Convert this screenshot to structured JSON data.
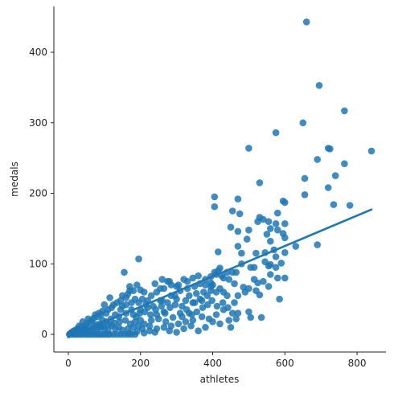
{
  "chart_data": {
    "type": "scatter",
    "title": "",
    "xlabel": "athletes",
    "ylabel": "medals",
    "xlim": [
      -40,
      880
    ],
    "ylim": [
      -25,
      465
    ],
    "xticks": [
      0,
      200,
      400,
      600,
      800
    ],
    "yticks": [
      0,
      100,
      200,
      300,
      400
    ],
    "grid": false,
    "legend": "none",
    "colors": {
      "points": "#1f77b4",
      "line": "#1f77b4",
      "axis": "#222222"
    },
    "regression_line": {
      "x": [
        0,
        840
      ],
      "y": [
        -4,
        177
      ]
    },
    "points": [
      [
        660,
        443
      ],
      [
        695,
        353
      ],
      [
        765,
        317
      ],
      [
        650,
        300
      ],
      [
        575,
        286
      ],
      [
        500,
        264
      ],
      [
        720,
        264
      ],
      [
        725,
        263
      ],
      [
        840,
        260
      ],
      [
        690,
        248
      ],
      [
        765,
        242
      ],
      [
        740,
        225
      ],
      [
        655,
        221
      ],
      [
        530,
        215
      ],
      [
        720,
        208
      ],
      [
        655,
        198
      ],
      [
        405,
        195
      ],
      [
        470,
        192
      ],
      [
        595,
        189
      ],
      [
        600,
        187
      ],
      [
        735,
        184
      ],
      [
        780,
        183
      ],
      [
        405,
        181
      ],
      [
        455,
        175
      ],
      [
        475,
        171
      ],
      [
        580,
        172
      ],
      [
        530,
        166
      ],
      [
        540,
        163
      ],
      [
        555,
        160
      ],
      [
        575,
        157
      ],
      [
        600,
        157
      ],
      [
        560,
        150
      ],
      [
        580,
        148
      ],
      [
        595,
        143
      ],
      [
        450,
        152
      ],
      [
        500,
        148
      ],
      [
        525,
        160
      ],
      [
        630,
        125
      ],
      [
        690,
        127
      ],
      [
        470,
        146
      ],
      [
        495,
        135
      ],
      [
        550,
        142
      ],
      [
        560,
        132
      ],
      [
        600,
        137
      ],
      [
        415,
        117
      ],
      [
        470,
        125
      ],
      [
        480,
        115
      ],
      [
        520,
        115
      ],
      [
        545,
        116
      ],
      [
        570,
        120
      ],
      [
        575,
        110
      ],
      [
        590,
        101
      ],
      [
        600,
        116
      ],
      [
        505,
        95
      ],
      [
        515,
        95
      ],
      [
        545,
        103
      ],
      [
        555,
        97
      ],
      [
        560,
        99
      ],
      [
        560,
        85
      ],
      [
        575,
        95
      ],
      [
        580,
        80
      ],
      [
        600,
        80
      ],
      [
        415,
        90
      ],
      [
        420,
        94
      ],
      [
        425,
        83
      ],
      [
        430,
        80
      ],
      [
        440,
        88
      ],
      [
        405,
        88
      ],
      [
        445,
        78
      ],
      [
        455,
        88
      ],
      [
        465,
        88
      ],
      [
        480,
        100
      ],
      [
        515,
        78
      ],
      [
        525,
        73
      ],
      [
        540,
        75
      ],
      [
        555,
        68
      ],
      [
        585,
        50
      ],
      [
        490,
        60
      ],
      [
        485,
        67
      ],
      [
        500,
        65
      ],
      [
        520,
        62
      ],
      [
        530,
        56
      ],
      [
        500,
        32
      ],
      [
        505,
        24
      ],
      [
        535,
        24
      ],
      [
        450,
        10
      ],
      [
        430,
        60
      ],
      [
        460,
        72
      ],
      [
        470,
        55
      ],
      [
        440,
        55
      ],
      [
        460,
        45
      ],
      [
        155,
        88
      ],
      [
        195,
        107
      ],
      [
        320,
        78
      ],
      [
        330,
        75
      ],
      [
        305,
        70
      ],
      [
        345,
        80
      ],
      [
        360,
        83
      ],
      [
        380,
        70
      ],
      [
        395,
        82
      ],
      [
        395,
        73
      ],
      [
        395,
        62
      ],
      [
        410,
        85
      ],
      [
        400,
        70
      ],
      [
        410,
        60
      ],
      [
        420,
        65
      ],
      [
        375,
        60
      ],
      [
        365,
        50
      ],
      [
        355,
        58
      ],
      [
        345,
        45
      ],
      [
        335,
        55
      ],
      [
        325,
        48
      ],
      [
        315,
        40
      ],
      [
        300,
        50
      ],
      [
        285,
        55
      ],
      [
        285,
        70
      ],
      [
        275,
        75
      ],
      [
        265,
        65
      ],
      [
        255,
        65
      ],
      [
        245,
        60
      ],
      [
        230,
        55
      ],
      [
        220,
        48
      ],
      [
        210,
        60
      ],
      [
        205,
        50
      ],
      [
        195,
        45
      ],
      [
        185,
        50
      ],
      [
        175,
        45
      ],
      [
        170,
        62
      ],
      [
        165,
        57
      ],
      [
        160,
        52
      ],
      [
        150,
        40
      ],
      [
        145,
        35
      ],
      [
        135,
        45
      ],
      [
        125,
        42
      ],
      [
        120,
        38
      ],
      [
        115,
        52
      ],
      [
        110,
        35
      ],
      [
        105,
        30
      ],
      [
        100,
        42
      ],
      [
        95,
        33
      ],
      [
        90,
        28
      ],
      [
        85,
        30
      ],
      [
        80,
        25
      ],
      [
        75,
        28
      ],
      [
        70,
        23
      ],
      [
        65,
        20
      ],
      [
        60,
        18
      ],
      [
        55,
        22
      ],
      [
        50,
        15
      ],
      [
        45,
        12
      ],
      [
        40,
        18
      ],
      [
        35,
        10
      ],
      [
        30,
        12
      ],
      [
        25,
        8
      ],
      [
        20,
        6
      ],
      [
        15,
        5
      ],
      [
        10,
        3
      ],
      [
        8,
        2
      ],
      [
        5,
        1
      ],
      [
        3,
        0
      ],
      [
        12,
        0
      ],
      [
        18,
        0
      ],
      [
        25,
        0
      ],
      [
        32,
        0
      ],
      [
        40,
        0
      ],
      [
        48,
        0
      ],
      [
        55,
        0
      ],
      [
        62,
        0
      ],
      [
        70,
        0
      ],
      [
        78,
        0
      ],
      [
        85,
        0
      ],
      [
        92,
        0
      ],
      [
        100,
        0
      ],
      [
        108,
        0
      ],
      [
        115,
        0
      ],
      [
        125,
        0
      ],
      [
        135,
        0
      ],
      [
        145,
        0
      ],
      [
        155,
        0
      ],
      [
        165,
        0
      ],
      [
        175,
        0
      ],
      [
        185,
        0
      ],
      [
        22,
        3
      ],
      [
        38,
        4
      ],
      [
        52,
        6
      ],
      [
        68,
        8
      ],
      [
        82,
        10
      ],
      [
        96,
        12
      ],
      [
        112,
        14
      ],
      [
        128,
        16
      ],
      [
        142,
        18
      ],
      [
        158,
        20
      ],
      [
        172,
        15
      ],
      [
        188,
        25
      ],
      [
        198,
        30
      ],
      [
        212,
        32
      ],
      [
        228,
        28
      ],
      [
        242,
        35
      ],
      [
        258,
        40
      ],
      [
        268,
        30
      ],
      [
        282,
        38
      ],
      [
        296,
        42
      ],
      [
        310,
        30
      ],
      [
        328,
        35
      ],
      [
        342,
        28
      ],
      [
        356,
        32
      ],
      [
        372,
        38
      ],
      [
        386,
        42
      ],
      [
        398,
        48
      ],
      [
        412,
        40
      ],
      [
        428,
        45
      ],
      [
        442,
        38
      ],
      [
        455,
        30
      ],
      [
        465,
        22
      ],
      [
        470,
        30
      ],
      [
        390,
        22
      ],
      [
        370,
        25
      ],
      [
        345,
        20
      ],
      [
        325,
        18
      ],
      [
        305,
        15
      ],
      [
        285,
        12
      ],
      [
        265,
        10
      ],
      [
        245,
        8
      ],
      [
        225,
        5
      ],
      [
        205,
        8
      ],
      [
        250,
        22
      ],
      [
        270,
        18
      ],
      [
        290,
        24
      ],
      [
        230,
        20
      ],
      [
        210,
        15
      ],
      [
        195,
        12
      ],
      [
        180,
        10
      ],
      [
        165,
        8
      ],
      [
        150,
        6
      ],
      [
        140,
        10
      ],
      [
        130,
        8
      ],
      [
        120,
        12
      ],
      [
        110,
        6
      ],
      [
        100,
        8
      ],
      [
        90,
        10
      ],
      [
        80,
        6
      ],
      [
        72,
        12
      ],
      [
        64,
        4
      ],
      [
        56,
        10
      ],
      [
        48,
        6
      ],
      [
        42,
        8
      ],
      [
        36,
        4
      ],
      [
        28,
        6
      ],
      [
        20,
        2
      ],
      [
        140,
        25
      ],
      [
        160,
        30
      ],
      [
        180,
        28
      ],
      [
        200,
        35
      ],
      [
        215,
        42
      ],
      [
        235,
        40
      ],
      [
        255,
        48
      ],
      [
        275,
        45
      ],
      [
        295,
        55
      ],
      [
        310,
        62
      ],
      [
        330,
        65
      ],
      [
        350,
        68
      ],
      [
        365,
        72
      ],
      [
        380,
        78
      ],
      [
        395,
        68
      ],
      [
        240,
        72
      ],
      [
        260,
        78
      ],
      [
        280,
        75
      ],
      [
        300,
        68
      ],
      [
        180,
        62
      ],
      [
        190,
        70
      ],
      [
        200,
        63
      ],
      [
        170,
        68
      ],
      [
        150,
        55
      ],
      [
        130,
        28
      ],
      [
        118,
        22
      ],
      [
        105,
        18
      ],
      [
        95,
        20
      ],
      [
        88,
        15
      ],
      [
        78,
        14
      ],
      [
        225,
        12
      ],
      [
        245,
        28
      ],
      [
        265,
        32
      ],
      [
        280,
        5
      ],
      [
        300,
        3
      ],
      [
        320,
        8
      ],
      [
        340,
        12
      ],
      [
        360,
        5
      ],
      [
        380,
        10
      ],
      [
        400,
        18
      ],
      [
        410,
        28
      ],
      [
        420,
        15
      ],
      [
        430,
        35
      ],
      [
        445,
        20
      ],
      [
        350,
        45
      ],
      [
        370,
        48
      ],
      [
        385,
        55
      ],
      [
        315,
        25
      ],
      [
        335,
        30
      ],
      [
        210,
        2
      ],
      [
        240,
        3
      ],
      [
        190,
        4
      ],
      [
        170,
        2
      ],
      [
        260,
        48
      ],
      [
        220,
        38
      ],
      [
        200,
        20
      ],
      [
        185,
        18
      ],
      [
        175,
        35
      ],
      [
        160,
        42
      ],
      [
        145,
        48
      ]
    ]
  }
}
